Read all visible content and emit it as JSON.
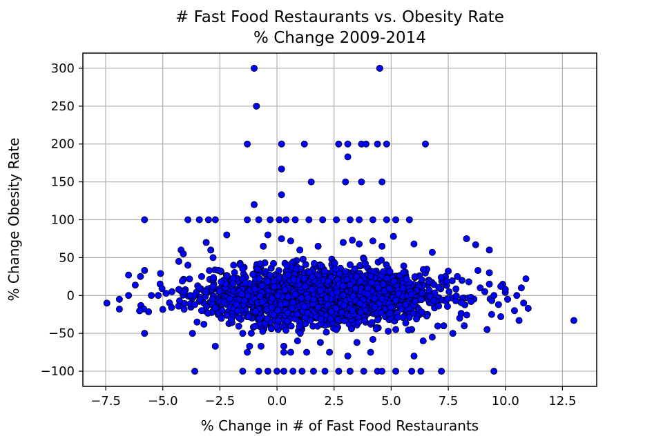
{
  "chart_data": {
    "type": "scatter",
    "title": "# Fast Food Restaurants vs. Obesity Rate",
    "subtitle": "% Change 2009-2014",
    "xlabel": "% Change in # of Fast Food Restaurants",
    "ylabel": "% Change Obesity Rate",
    "xlim": [
      -8.5,
      14.0
    ],
    "ylim": [
      -120,
      320
    ],
    "xticks": [
      -7.5,
      -5.0,
      -2.5,
      0.0,
      2.5,
      5.0,
      7.5,
      10.0,
      12.5
    ],
    "xtick_labels": [
      "−7.5",
      "−5.0",
      "−2.5",
      "0.0",
      "2.5",
      "5.0",
      "7.5",
      "10.0",
      "12.5"
    ],
    "yticks": [
      -100,
      -50,
      0,
      50,
      100,
      150,
      200,
      250,
      300
    ],
    "ytick_labels": [
      "−100",
      "−50",
      "0",
      "50",
      "100",
      "150",
      "200",
      "250",
      "300"
    ],
    "grid": true,
    "marker": {
      "fill": "#0000ff",
      "edge": "#000000"
    },
    "points": [
      [
        -1.0,
        300
      ],
      [
        4.5,
        300
      ],
      [
        -0.9,
        250
      ],
      [
        -1.3,
        200
      ],
      [
        0.2,
        200
      ],
      [
        1.2,
        200
      ],
      [
        2.7,
        200
      ],
      [
        3.1,
        200
      ],
      [
        3.7,
        200
      ],
      [
        3.9,
        200
      ],
      [
        4.4,
        200
      ],
      [
        4.8,
        200
      ],
      [
        6.5,
        200
      ],
      [
        0.2,
        167
      ],
      [
        3.1,
        183
      ],
      [
        0.2,
        133
      ],
      [
        1.5,
        150
      ],
      [
        3.0,
        150
      ],
      [
        3.7,
        150
      ],
      [
        4.6,
        150
      ],
      [
        -1.0,
        120
      ],
      [
        -5.8,
        100
      ],
      [
        -3.9,
        100
      ],
      [
        -3.4,
        100
      ],
      [
        -3.0,
        100
      ],
      [
        -2.7,
        100
      ],
      [
        -1.3,
        100
      ],
      [
        -0.8,
        100
      ],
      [
        -0.3,
        100
      ],
      [
        0.1,
        100
      ],
      [
        0.4,
        100
      ],
      [
        0.8,
        100
      ],
      [
        1.4,
        100
      ],
      [
        2.0,
        100
      ],
      [
        2.6,
        100
      ],
      [
        3.2,
        100
      ],
      [
        3.6,
        100
      ],
      [
        4.2,
        100
      ],
      [
        4.8,
        100
      ],
      [
        5.2,
        100
      ],
      [
        5.8,
        100
      ],
      [
        -5.8,
        33
      ],
      [
        -6.5,
        27
      ],
      [
        -5.1,
        29
      ],
      [
        -4.3,
        45
      ],
      [
        -4.2,
        60
      ],
      [
        -4.1,
        55
      ],
      [
        -3.9,
        40
      ],
      [
        -3.3,
        25
      ],
      [
        -3.1,
        70
      ],
      [
        -2.9,
        60
      ],
      [
        -2.8,
        50
      ],
      [
        -2.2,
        80
      ],
      [
        -1.9,
        40
      ],
      [
        -1.5,
        35
      ],
      [
        -0.6,
        65
      ],
      [
        -0.4,
        80
      ],
      [
        0.2,
        75
      ],
      [
        0.6,
        72
      ],
      [
        1.0,
        60
      ],
      [
        1.8,
        65
      ],
      [
        2.9,
        70
      ],
      [
        3.3,
        73
      ],
      [
        3.6,
        68
      ],
      [
        4.2,
        72
      ],
      [
        4.6,
        65
      ],
      [
        5.1,
        78
      ],
      [
        6.0,
        68
      ],
      [
        6.8,
        57
      ],
      [
        8.3,
        75
      ],
      [
        8.7,
        67
      ],
      [
        9.3,
        60
      ],
      [
        -6.9,
        -5
      ],
      [
        -6.9,
        -18
      ],
      [
        -6.5,
        0
      ],
      [
        -5.5,
        0
      ],
      [
        -5.2,
        0
      ],
      [
        -4.6,
        5
      ],
      [
        -4.3,
        8
      ],
      [
        -3.8,
        0
      ],
      [
        -3.6,
        -12
      ],
      [
        -3.4,
        10
      ],
      [
        -3.3,
        -20
      ],
      [
        -3.1,
        5
      ],
      [
        -5.8,
        -50
      ],
      [
        -3.7,
        -50
      ],
      [
        -3.5,
        -35
      ],
      [
        -3.2,
        -38
      ],
      [
        -2.7,
        -67
      ],
      [
        -2.4,
        -20
      ],
      [
        -2.0,
        -32
      ],
      [
        -1.5,
        -50
      ],
      [
        -1.2,
        -67
      ],
      [
        -0.7,
        -67
      ],
      [
        0.3,
        -67
      ],
      [
        0.9,
        -60
      ],
      [
        1.9,
        -62
      ],
      [
        2.6,
        -45
      ],
      [
        3.5,
        -62
      ],
      [
        4.2,
        -58
      ],
      [
        5.2,
        -45
      ],
      [
        6.4,
        -60
      ],
      [
        6.8,
        -55
      ],
      [
        7.3,
        -40
      ],
      [
        7.7,
        -50
      ],
      [
        -3.6,
        -100
      ],
      [
        -1.5,
        -100
      ],
      [
        -0.8,
        -100
      ],
      [
        -0.4,
        -100
      ],
      [
        0.0,
        -100
      ],
      [
        0.3,
        -100
      ],
      [
        0.7,
        -100
      ],
      [
        1.1,
        -100
      ],
      [
        1.6,
        -100
      ],
      [
        2.1,
        -100
      ],
      [
        2.7,
        -100
      ],
      [
        3.2,
        -100
      ],
      [
        3.8,
        -100
      ],
      [
        4.4,
        -100
      ],
      [
        4.6,
        -100
      ],
      [
        5.2,
        -100
      ],
      [
        5.9,
        -100
      ],
      [
        6.3,
        -100
      ],
      [
        7.2,
        -100
      ],
      [
        9.5,
        -100
      ],
      [
        -1.3,
        -75
      ],
      [
        0.3,
        -75
      ],
      [
        0.6,
        -75
      ],
      [
        1.3,
        -75
      ],
      [
        2.3,
        -75
      ],
      [
        3.1,
        -80
      ],
      [
        4.1,
        -75
      ],
      [
        6.0,
        -80
      ],
      [
        7.9,
        25
      ],
      [
        8.1,
        20
      ],
      [
        8.4,
        18
      ],
      [
        8.8,
        33
      ],
      [
        8.9,
        10
      ],
      [
        9.1,
        5
      ],
      [
        9.3,
        15
      ],
      [
        9.5,
        0
      ],
      [
        9.7,
        -12
      ],
      [
        9.8,
        12
      ],
      [
        10.0,
        8
      ],
      [
        10.1,
        -5
      ],
      [
        10.4,
        -20
      ],
      [
        10.5,
        0
      ],
      [
        10.7,
        10
      ],
      [
        10.8,
        -10
      ],
      [
        10.9,
        22
      ],
      [
        11.0,
        -17
      ],
      [
        9.4,
        -25
      ],
      [
        9.8,
        -28
      ],
      [
        10.6,
        -33
      ],
      [
        9.2,
        -45
      ],
      [
        9.3,
        30
      ],
      [
        8.5,
        -8
      ],
      [
        8.0,
        -30
      ],
      [
        8.2,
        -40
      ],
      [
        13.0,
        -33
      ]
    ],
    "cluster": {
      "x_mean": 1.8,
      "x_sd": 2.3,
      "y_sd": 17,
      "y_clip": 50,
      "count": 2600
    }
  }
}
